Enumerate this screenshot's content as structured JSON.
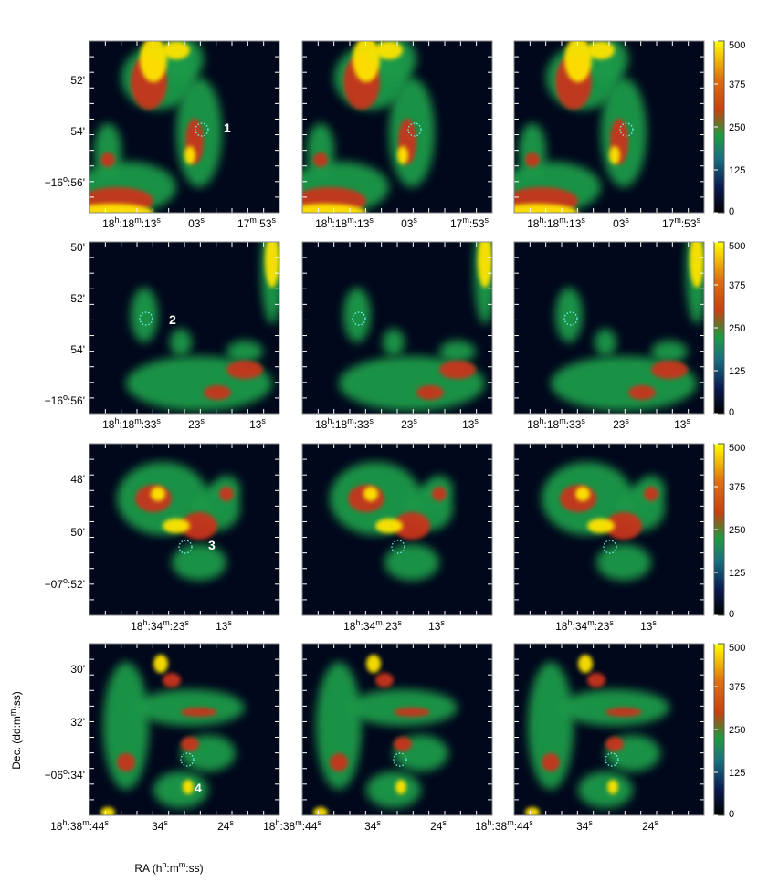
{
  "figure": {
    "y_axis_label": "Dec. (dd:mm:ss)",
    "x_axis_label": "RA (hh:mm:ss)",
    "rows": [
      {
        "ytick_labels": [
          "52'",
          "54'",
          "−16o:56'"
        ],
        "source_label": "1",
        "columns": [
          {
            "xtick_labels": [
              "18h:18m:13s",
              "03s",
              "17m:53s"
            ]
          },
          {
            "xtick_labels": [
              "18h:18m:13s",
              "03s",
              "17m:53s"
            ]
          },
          {
            "xtick_labels": [
              "18h:18m:13s",
              "03s",
              "17m:53s"
            ]
          }
        ],
        "colorbar": {
          "lim": [
            0,
            500
          ],
          "ticks": [
            0,
            125,
            250,
            375,
            500
          ]
        }
      },
      {
        "ytick_labels": [
          "50'",
          "52'",
          "54'",
          "−16o:56'"
        ],
        "source_label": "2",
        "columns": [
          {
            "xtick_labels": [
              "18h:18m:33s",
              "23s",
              "13s"
            ]
          },
          {
            "xtick_labels": [
              "18h:18m:33s",
              "23s",
              "13s"
            ]
          },
          {
            "xtick_labels": [
              "18h:18m:33s",
              "23s",
              "13s"
            ]
          }
        ],
        "colorbar": {
          "lim": [
            0,
            500
          ],
          "ticks": [
            0,
            125,
            250,
            375,
            500
          ]
        }
      },
      {
        "ytick_labels": [
          "48'",
          "50'",
          "−07o:52'"
        ],
        "source_label": "3",
        "columns": [
          {
            "xtick_labels": [
              "18h:34m:23s",
              "13s"
            ]
          },
          {
            "xtick_labels": [
              "18h:34m:23s",
              "13s"
            ]
          },
          {
            "xtick_labels": [
              "18h:34m:23s",
              "13s"
            ]
          }
        ],
        "colorbar": {
          "lim": [
            0,
            500
          ],
          "ticks": [
            0,
            125,
            250,
            375,
            500
          ]
        }
      },
      {
        "ytick_labels": [
          "30'",
          "32'",
          "−06o:34'"
        ],
        "source_label": "4",
        "columns": [
          {
            "xtick_labels": [
              "18h:38m:44s",
              "34s",
              "24s"
            ]
          },
          {
            "xtick_labels": [
              "18h:38m:44s",
              "34s",
              "24s"
            ]
          },
          {
            "xtick_labels": [
              "18h:38m:44s",
              "34s",
              "24s"
            ]
          }
        ],
        "colorbar": {
          "lim": [
            0,
            500
          ],
          "ticks": [
            0,
            125,
            250,
            375,
            500
          ]
        }
      }
    ]
  }
}
